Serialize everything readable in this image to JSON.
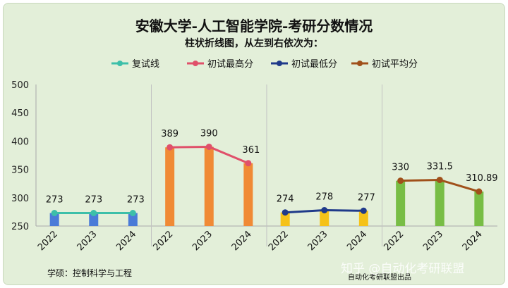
{
  "chart_data": {
    "type": "bar+line",
    "title": "安徽大学-人工智能学院-考研分数情况",
    "subtitle": "柱状折线图，从左到右依次为：",
    "ylim": [
      250,
      500
    ],
    "yticks": [
      "500",
      "450",
      "400",
      "350",
      "300",
      "250"
    ],
    "grid": false,
    "legend_position": "top",
    "groups": [
      {
        "series": "复试线",
        "color": "#3cbfa9",
        "bar_color": "#4a7bd8",
        "x": [
          "2022",
          "2023",
          "2024"
        ],
        "values": [
          273,
          273,
          273
        ],
        "labels": [
          "273",
          "273",
          "273"
        ]
      },
      {
        "series": "初试最高分",
        "color": "#e0506a",
        "bar_color": "#f08a35",
        "x": [
          "2022",
          "2023",
          "2024"
        ],
        "values": [
          389,
          390,
          361
        ],
        "labels": [
          "389",
          "390",
          "361"
        ]
      },
      {
        "series": "初试最低分",
        "color": "#1f3a8a",
        "bar_color": "#f5c218",
        "x": [
          "2022",
          "2023",
          "2024"
        ],
        "values": [
          274,
          278,
          277
        ],
        "labels": [
          "274",
          "278",
          "277"
        ]
      },
      {
        "series": "初试平均分",
        "color": "#a0501a",
        "bar_color": "#78bd45",
        "x": [
          "2022",
          "2023",
          "2024"
        ],
        "values": [
          330,
          331.5,
          310.89
        ],
        "labels": [
          "330",
          "331.5",
          "310.89"
        ]
      }
    ]
  },
  "footer": {
    "left": "学硕：控制科学与工程",
    "center": "自动化考研联盟出品",
    "watermark": "知乎 @自动化考研联盟"
  }
}
